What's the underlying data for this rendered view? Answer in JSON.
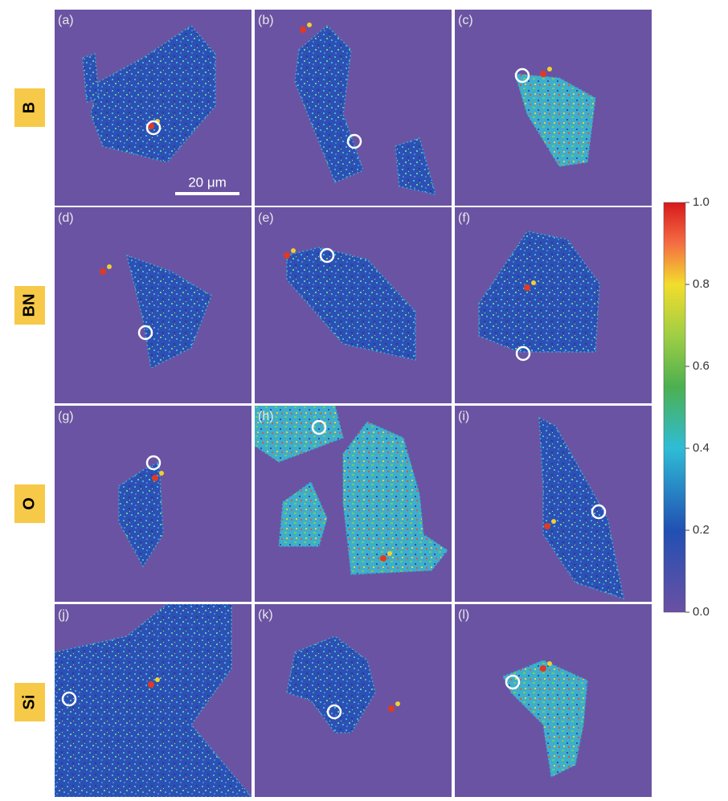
{
  "figure": {
    "rows": [
      {
        "label": "B",
        "panels": [
          "(a)",
          "(b)",
          "(c)"
        ]
      },
      {
        "label": "BN",
        "panels": [
          "(d)",
          "(e)",
          "(f)"
        ]
      },
      {
        "label": "O",
        "panels": [
          "(g)",
          "(h)",
          "(i)"
        ]
      },
      {
        "label": "Si",
        "panels": [
          "(j)",
          "(k)",
          "(l)"
        ]
      }
    ],
    "scale_bar": "20 μm",
    "colorbar": {
      "ylim": [
        0,
        1
      ],
      "yticks": [
        {
          "value": 0,
          "label": "0.0"
        },
        0.2,
        0.4,
        0.6,
        0.8,
        {
          "value": 1,
          "label": "1.0"
        }
      ]
    }
  }
}
